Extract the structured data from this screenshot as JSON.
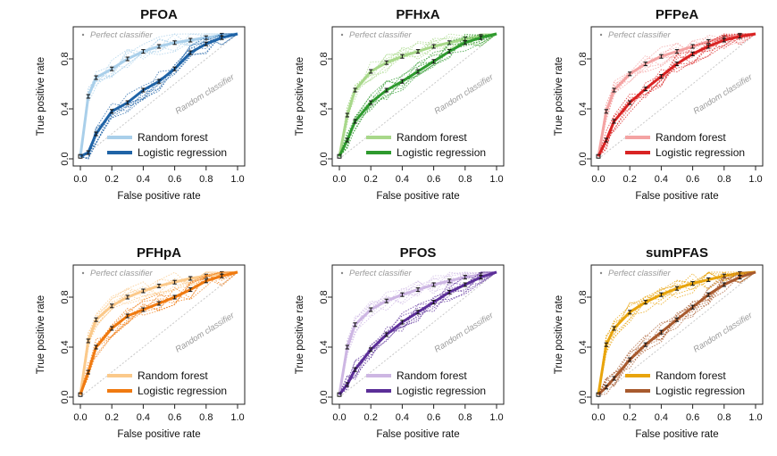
{
  "figure": {
    "xlabel": "False positive rate",
    "ylabel": "True positive rate",
    "x_ticks": [
      "0.0",
      "0.2",
      "0.4",
      "0.6",
      "0.8",
      "1.0"
    ],
    "y_ticks": [
      "0.0",
      "0.4",
      "0.8"
    ],
    "perfect_label": "Perfect classifier",
    "random_label": "Random classifier",
    "legend": [
      "Random forest",
      "Logistic regression"
    ]
  },
  "chart_data": [
    {
      "type": "line",
      "title": "PFOA",
      "xlabel": "False positive rate",
      "ylabel": "True positive rate",
      "xlim": [
        0,
        1
      ],
      "ylim": [
        0,
        1
      ],
      "grid": false,
      "legend_position": "bottom-right",
      "series": [
        {
          "name": "Random forest",
          "color": "#a9cfea",
          "x": [
            0,
            0.05,
            0.1,
            0.2,
            0.3,
            0.4,
            0.5,
            0.6,
            0.7,
            0.8,
            0.9,
            1.0
          ],
          "y": [
            0.02,
            0.5,
            0.65,
            0.72,
            0.8,
            0.86,
            0.9,
            0.93,
            0.95,
            0.97,
            0.99,
            1.0
          ]
        },
        {
          "name": "Logistic regression",
          "color": "#1f63a6",
          "x": [
            0,
            0.05,
            0.1,
            0.2,
            0.3,
            0.4,
            0.5,
            0.6,
            0.7,
            0.8,
            0.9,
            1.0
          ],
          "y": [
            0.02,
            0.05,
            0.2,
            0.38,
            0.45,
            0.55,
            0.62,
            0.72,
            0.85,
            0.92,
            0.97,
            1.0
          ]
        }
      ]
    },
    {
      "type": "line",
      "title": "PFHxA",
      "xlabel": "False positive rate",
      "ylabel": "True positive rate",
      "xlim": [
        0,
        1
      ],
      "ylim": [
        0,
        1
      ],
      "grid": false,
      "legend_position": "bottom-right",
      "series": [
        {
          "name": "Random forest",
          "color": "#a8d88a",
          "x": [
            0,
            0.05,
            0.1,
            0.2,
            0.3,
            0.4,
            0.5,
            0.6,
            0.7,
            0.8,
            0.9,
            1.0
          ],
          "y": [
            0.02,
            0.35,
            0.55,
            0.7,
            0.77,
            0.82,
            0.86,
            0.9,
            0.93,
            0.96,
            0.98,
            1.0
          ]
        },
        {
          "name": "Logistic regression",
          "color": "#2e9a2e",
          "x": [
            0,
            0.05,
            0.1,
            0.2,
            0.3,
            0.4,
            0.5,
            0.6,
            0.7,
            0.8,
            0.9,
            1.0
          ],
          "y": [
            0.02,
            0.15,
            0.3,
            0.45,
            0.55,
            0.62,
            0.7,
            0.78,
            0.86,
            0.93,
            0.97,
            1.0
          ]
        }
      ]
    },
    {
      "type": "line",
      "title": "PFPeA",
      "xlabel": "False positive rate",
      "ylabel": "True positive rate",
      "xlim": [
        0,
        1
      ],
      "ylim": [
        0,
        1
      ],
      "grid": false,
      "legend_position": "bottom-right",
      "series": [
        {
          "name": "Random forest",
          "color": "#f4a3a3",
          "x": [
            0,
            0.05,
            0.1,
            0.2,
            0.3,
            0.4,
            0.5,
            0.6,
            0.7,
            0.8,
            0.9,
            1.0
          ],
          "y": [
            0.02,
            0.38,
            0.55,
            0.68,
            0.76,
            0.82,
            0.86,
            0.9,
            0.94,
            0.97,
            0.99,
            1.0
          ]
        },
        {
          "name": "Logistic regression",
          "color": "#d92323",
          "x": [
            0,
            0.05,
            0.1,
            0.2,
            0.3,
            0.4,
            0.5,
            0.6,
            0.7,
            0.8,
            0.9,
            1.0
          ],
          "y": [
            0.02,
            0.15,
            0.3,
            0.45,
            0.56,
            0.66,
            0.76,
            0.84,
            0.9,
            0.95,
            0.98,
            1.0
          ]
        }
      ]
    },
    {
      "type": "line",
      "title": "PFHpA",
      "xlabel": "False positive rate",
      "ylabel": "True positive rate",
      "xlim": [
        0,
        1
      ],
      "ylim": [
        0,
        1
      ],
      "grid": false,
      "legend_position": "bottom-right",
      "series": [
        {
          "name": "Random forest",
          "color": "#fbc98a",
          "x": [
            0,
            0.05,
            0.1,
            0.2,
            0.3,
            0.4,
            0.5,
            0.6,
            0.7,
            0.8,
            0.9,
            1.0
          ],
          "y": [
            0.02,
            0.45,
            0.62,
            0.73,
            0.8,
            0.85,
            0.89,
            0.92,
            0.95,
            0.97,
            0.99,
            1.0
          ]
        },
        {
          "name": "Logistic regression",
          "color": "#f07a10",
          "x": [
            0,
            0.05,
            0.1,
            0.2,
            0.3,
            0.4,
            0.5,
            0.6,
            0.7,
            0.8,
            0.9,
            1.0
          ],
          "y": [
            0.02,
            0.2,
            0.4,
            0.55,
            0.65,
            0.7,
            0.75,
            0.8,
            0.86,
            0.93,
            0.97,
            1.0
          ]
        }
      ]
    },
    {
      "type": "line",
      "title": "PFOS",
      "xlabel": "False positive rate",
      "ylabel": "True positive rate",
      "xlim": [
        0,
        1
      ],
      "ylim": [
        0,
        1
      ],
      "grid": false,
      "legend_position": "bottom-right",
      "series": [
        {
          "name": "Random forest",
          "color": "#cdb6e3",
          "x": [
            0,
            0.05,
            0.1,
            0.2,
            0.3,
            0.4,
            0.5,
            0.6,
            0.7,
            0.8,
            0.9,
            1.0
          ],
          "y": [
            0.02,
            0.4,
            0.58,
            0.7,
            0.77,
            0.82,
            0.86,
            0.9,
            0.93,
            0.96,
            0.98,
            1.0
          ]
        },
        {
          "name": "Logistic regression",
          "color": "#5b2e98",
          "x": [
            0,
            0.05,
            0.1,
            0.2,
            0.3,
            0.4,
            0.5,
            0.6,
            0.7,
            0.8,
            0.9,
            1.0
          ],
          "y": [
            0.02,
            0.1,
            0.22,
            0.38,
            0.5,
            0.6,
            0.68,
            0.76,
            0.84,
            0.9,
            0.96,
            1.0
          ]
        }
      ]
    },
    {
      "type": "line",
      "title": "sumPFAS",
      "xlabel": "False positive rate",
      "ylabel": "True positive rate",
      "xlim": [
        0,
        1
      ],
      "ylim": [
        0,
        1
      ],
      "grid": false,
      "legend_position": "bottom-right",
      "series": [
        {
          "name": "Random forest",
          "color": "#e8a40c",
          "x": [
            0,
            0.05,
            0.1,
            0.2,
            0.3,
            0.4,
            0.5,
            0.6,
            0.7,
            0.8,
            0.9,
            1.0
          ],
          "y": [
            0.02,
            0.42,
            0.55,
            0.68,
            0.76,
            0.82,
            0.87,
            0.91,
            0.94,
            0.97,
            0.99,
            1.0
          ]
        },
        {
          "name": "Logistic regression",
          "color": "#a85a2e",
          "x": [
            0,
            0.05,
            0.1,
            0.2,
            0.3,
            0.4,
            0.5,
            0.6,
            0.7,
            0.8,
            0.9,
            1.0
          ],
          "y": [
            0.02,
            0.08,
            0.15,
            0.3,
            0.42,
            0.52,
            0.62,
            0.72,
            0.82,
            0.9,
            0.96,
            1.0
          ]
        }
      ]
    }
  ]
}
